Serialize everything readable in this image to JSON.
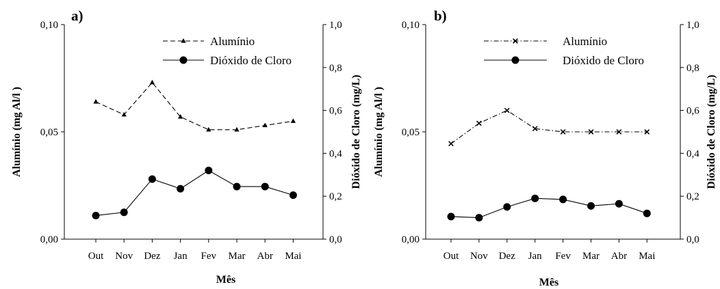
{
  "chart_data": [
    {
      "type": "line",
      "panel_label": "a)",
      "xlabel": "Mês",
      "ylabel_left": "Alumínio (mg Al/l )",
      "ylabel_right": "Dióxido de Cloro (mg/L)",
      "categories": [
        "Out",
        "Nov",
        "Dez",
        "Jan",
        "Fev",
        "Mar",
        "Abr",
        "Mai"
      ],
      "ylim_left": [
        0,
        0.1
      ],
      "ylim_right": [
        0,
        1.0
      ],
      "yticks_left": [
        "0,00",
        "0,05",
        "0,10"
      ],
      "yticks_right": [
        "0,0",
        "0,2",
        "0,4",
        "0,6",
        "0,8",
        "1,0"
      ],
      "legend_position": "top-right",
      "series": [
        {
          "name": "Alumínio",
          "axis": "left",
          "marker": "triangle",
          "line": "dashed",
          "values": [
            0.064,
            0.058,
            0.073,
            0.057,
            0.051,
            0.051,
            0.053,
            0.055
          ]
        },
        {
          "name": "Dióxido de Cloro",
          "axis": "right",
          "marker": "circle",
          "line": "solid",
          "values": [
            0.11,
            0.125,
            0.28,
            0.235,
            0.32,
            0.245,
            0.245,
            0.205
          ]
        }
      ]
    },
    {
      "type": "line",
      "panel_label": "b)",
      "xlabel": "Mês",
      "ylabel_left": "Alumínio (mg Al/l )",
      "ylabel_right": "Dióxido de Cloro (mg/L)",
      "categories": [
        "Out",
        "Nov",
        "Dez",
        "Jan",
        "Fev",
        "Mar",
        "Abr",
        "Mai"
      ],
      "ylim_left": [
        0,
        0.1
      ],
      "ylim_right": [
        0,
        1.0
      ],
      "yticks_left": [
        "0,00",
        "0,05",
        "0,10"
      ],
      "yticks_right": [
        "0,0",
        "0,2",
        "0,4",
        "0,6",
        "0,8",
        "1,0"
      ],
      "legend_position": "top-right",
      "series": [
        {
          "name": "Alumínio",
          "axis": "left",
          "marker": "x",
          "line": "dash-dot",
          "values": [
            0.0445,
            0.054,
            0.06,
            0.0515,
            0.05,
            0.05,
            0.05,
            0.05
          ]
        },
        {
          "name": "Dióxido de Cloro",
          "axis": "right",
          "marker": "circle",
          "line": "solid",
          "values": [
            0.105,
            0.1,
            0.15,
            0.19,
            0.185,
            0.155,
            0.165,
            0.12
          ]
        }
      ]
    }
  ]
}
